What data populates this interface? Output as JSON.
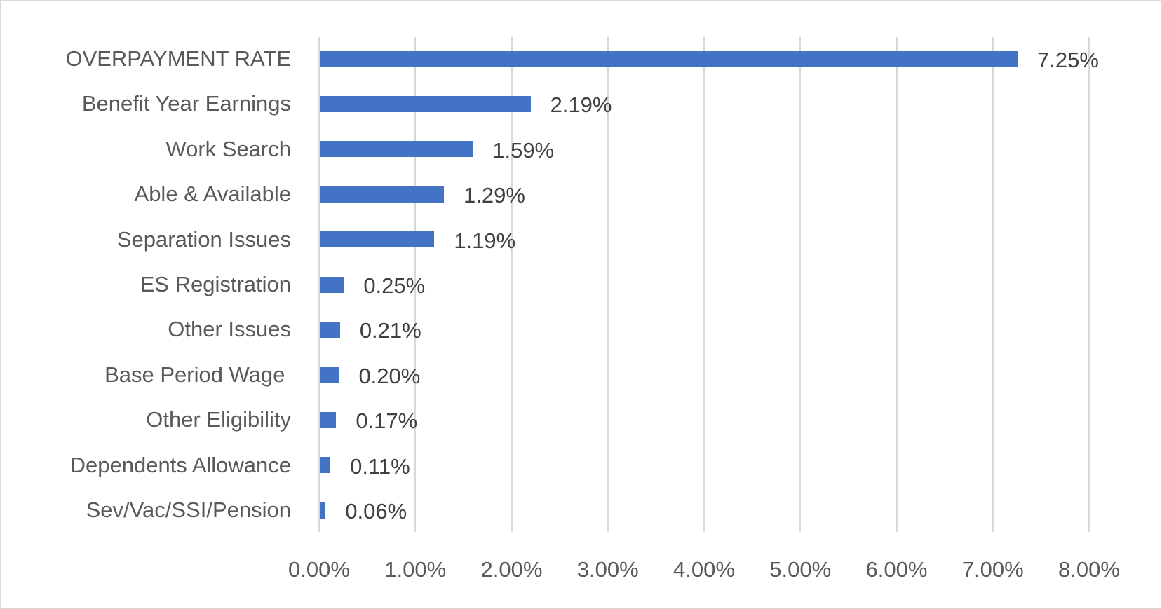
{
  "chart_data": {
    "type": "bar",
    "orientation": "horizontal",
    "title": "",
    "xlabel": "",
    "ylabel": "",
    "xlim": [
      0,
      8
    ],
    "grid": true,
    "legend": null,
    "bar_color": "#4472C4",
    "categories": [
      "OVERPAYMENT RATE",
      "Benefit Year Earnings",
      "Work Search",
      "Able & Available",
      "Separation Issues",
      "ES Registration",
      "Other Issues",
      "Base Period Wage ",
      "Other Eligibility",
      "Dependents Allowance",
      "Sev/Vac/SSI/Pension"
    ],
    "values": [
      7.25,
      2.19,
      1.59,
      1.29,
      1.19,
      0.25,
      0.21,
      0.2,
      0.17,
      0.11,
      0.06
    ],
    "value_labels": [
      "7.25%",
      "2.19%",
      "1.59%",
      "1.29%",
      "1.19%",
      "0.25%",
      "0.21%",
      "0.20%",
      "0.17%",
      "0.11%",
      "0.06%"
    ],
    "x_ticks": [
      0,
      1,
      2,
      3,
      4,
      5,
      6,
      7,
      8
    ],
    "x_tick_labels": [
      "0.00%",
      "1.00%",
      "2.00%",
      "3.00%",
      "4.00%",
      "5.00%",
      "6.00%",
      "7.00%",
      "8.00%"
    ]
  },
  "colors": {
    "bar": "#4472C4",
    "gridline": "#D9D9D9",
    "axis_text": "#595959",
    "value_text": "#404040",
    "border": "#D9D9D9"
  }
}
